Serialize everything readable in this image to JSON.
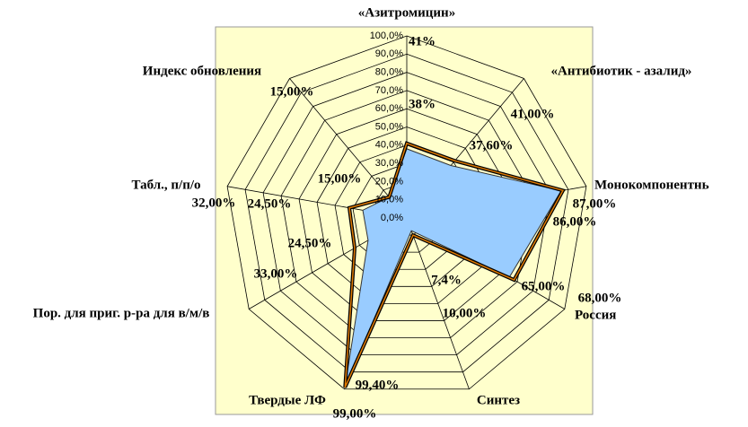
{
  "chart_data": {
    "type": "radar",
    "categories": [
      "«Азитромицин»",
      "«Антибиотик - азалид»",
      "Монокомпонентнь",
      "Россия",
      "Синтез",
      "Твердые ЛФ",
      "Пор. для приг. р-ра для в/м/в",
      "Табл., п/п/о",
      "Индекс обновления"
    ],
    "series": [
      {
        "color": "#000000",
        "values": [
          41,
          41,
          87,
          68,
          10,
          99,
          33,
          32,
          15
        ],
        "value_labels": [
          "41%",
          "41,00%",
          "87,00%",
          "68,00%",
          "10,00%",
          "99,00%",
          "33,00%",
          "32,00%",
          "15,00%"
        ]
      },
      {
        "color": "#99ccff",
        "values": [
          38,
          37.6,
          86,
          65,
          7.4,
          99.4,
          24.5,
          24.5,
          15
        ],
        "value_labels": [
          "38%",
          "37,60%",
          "86,00%",
          "65,00%",
          "7,4%",
          "99,40%",
          "24,50%",
          "24,50%",
          "15,00%"
        ]
      }
    ],
    "ylim": [
      0,
      100
    ],
    "yticks": [
      {
        "value": 0,
        "label": "0,0%"
      },
      {
        "value": 10,
        "label": "10,0%"
      },
      {
        "value": 20,
        "label": "20,0%"
      },
      {
        "value": 30,
        "label": "30,0%"
      },
      {
        "value": 40,
        "label": "40,0%"
      },
      {
        "value": 50,
        "label": "50,0%"
      },
      {
        "value": 60,
        "label": "60,0%"
      },
      {
        "value": 70,
        "label": "70,0%"
      },
      {
        "value": 80,
        "label": "80,0%"
      },
      {
        "value": 90,
        "label": "90,0%"
      },
      {
        "value": 100,
        "label": "100,0%"
      }
    ],
    "grid": true
  }
}
